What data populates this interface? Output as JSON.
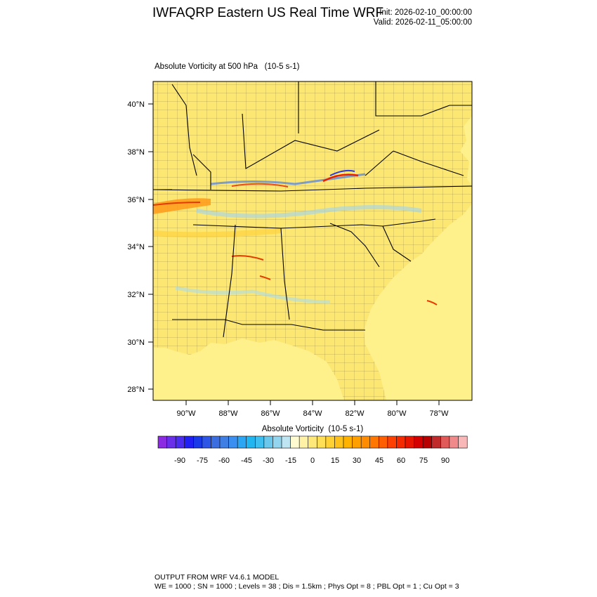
{
  "header": {
    "title": "IWFAQRP Eastern US Real Time WRF",
    "init": "Init: 2026-02-10_00:00:00",
    "valid": "Valid: 2026-02-11_05:00:00"
  },
  "map": {
    "subtitle": "Absolute Vorticity at 500 hPa   (10-5 s-1)",
    "lat_labels": [
      "40°N",
      "38°N",
      "36°N",
      "34°N",
      "32°N",
      "30°N",
      "28°N"
    ],
    "lon_labels": [
      "90°W",
      "88°W",
      "86°W",
      "84°W",
      "82°W",
      "80°W",
      "78°W"
    ],
    "colors": {
      "land_base": "#fde773",
      "ocean_base": "#fef08a",
      "boundaries": "#000000"
    }
  },
  "colorbar": {
    "title": "Absolute Vorticity  (10-5 s-1)",
    "tick_labels": [
      "-90",
      "-75",
      "-60",
      "-45",
      "-30",
      "-15",
      "0",
      "15",
      "30",
      "45",
      "60",
      "75",
      "90"
    ],
    "colors": [
      "#8a2be2",
      "#6a2fe8",
      "#4b2df0",
      "#2020f5",
      "#1a3ae8",
      "#2d55e6",
      "#3a6ee0",
      "#3f7fe4",
      "#3a8ff0",
      "#2aa6f5",
      "#22b6f0",
      "#3fbff0",
      "#6bc8ec",
      "#93d4ee",
      "#bfe5f2",
      "#fffbd0",
      "#fff2a6",
      "#ffe87a",
      "#ffdf55",
      "#ffd133",
      "#ffc21a",
      "#ffb300",
      "#ffa000",
      "#ff8c00",
      "#ff7700",
      "#ff5f00",
      "#ff4000",
      "#f52a00",
      "#e81500",
      "#d40000",
      "#b80000",
      "#c02a2a",
      "#e05a5a",
      "#f08a8a",
      "#f8b8b8"
    ]
  },
  "footer": {
    "line1": "OUTPUT FROM WRF V4.6.1 MODEL",
    "line2": "WE = 1000 ; SN = 1000 ; Levels = 38 ; Dis = 1.5km ; Phys Opt = 8 ; PBL Opt = 1 ; Cu Opt = 3"
  }
}
